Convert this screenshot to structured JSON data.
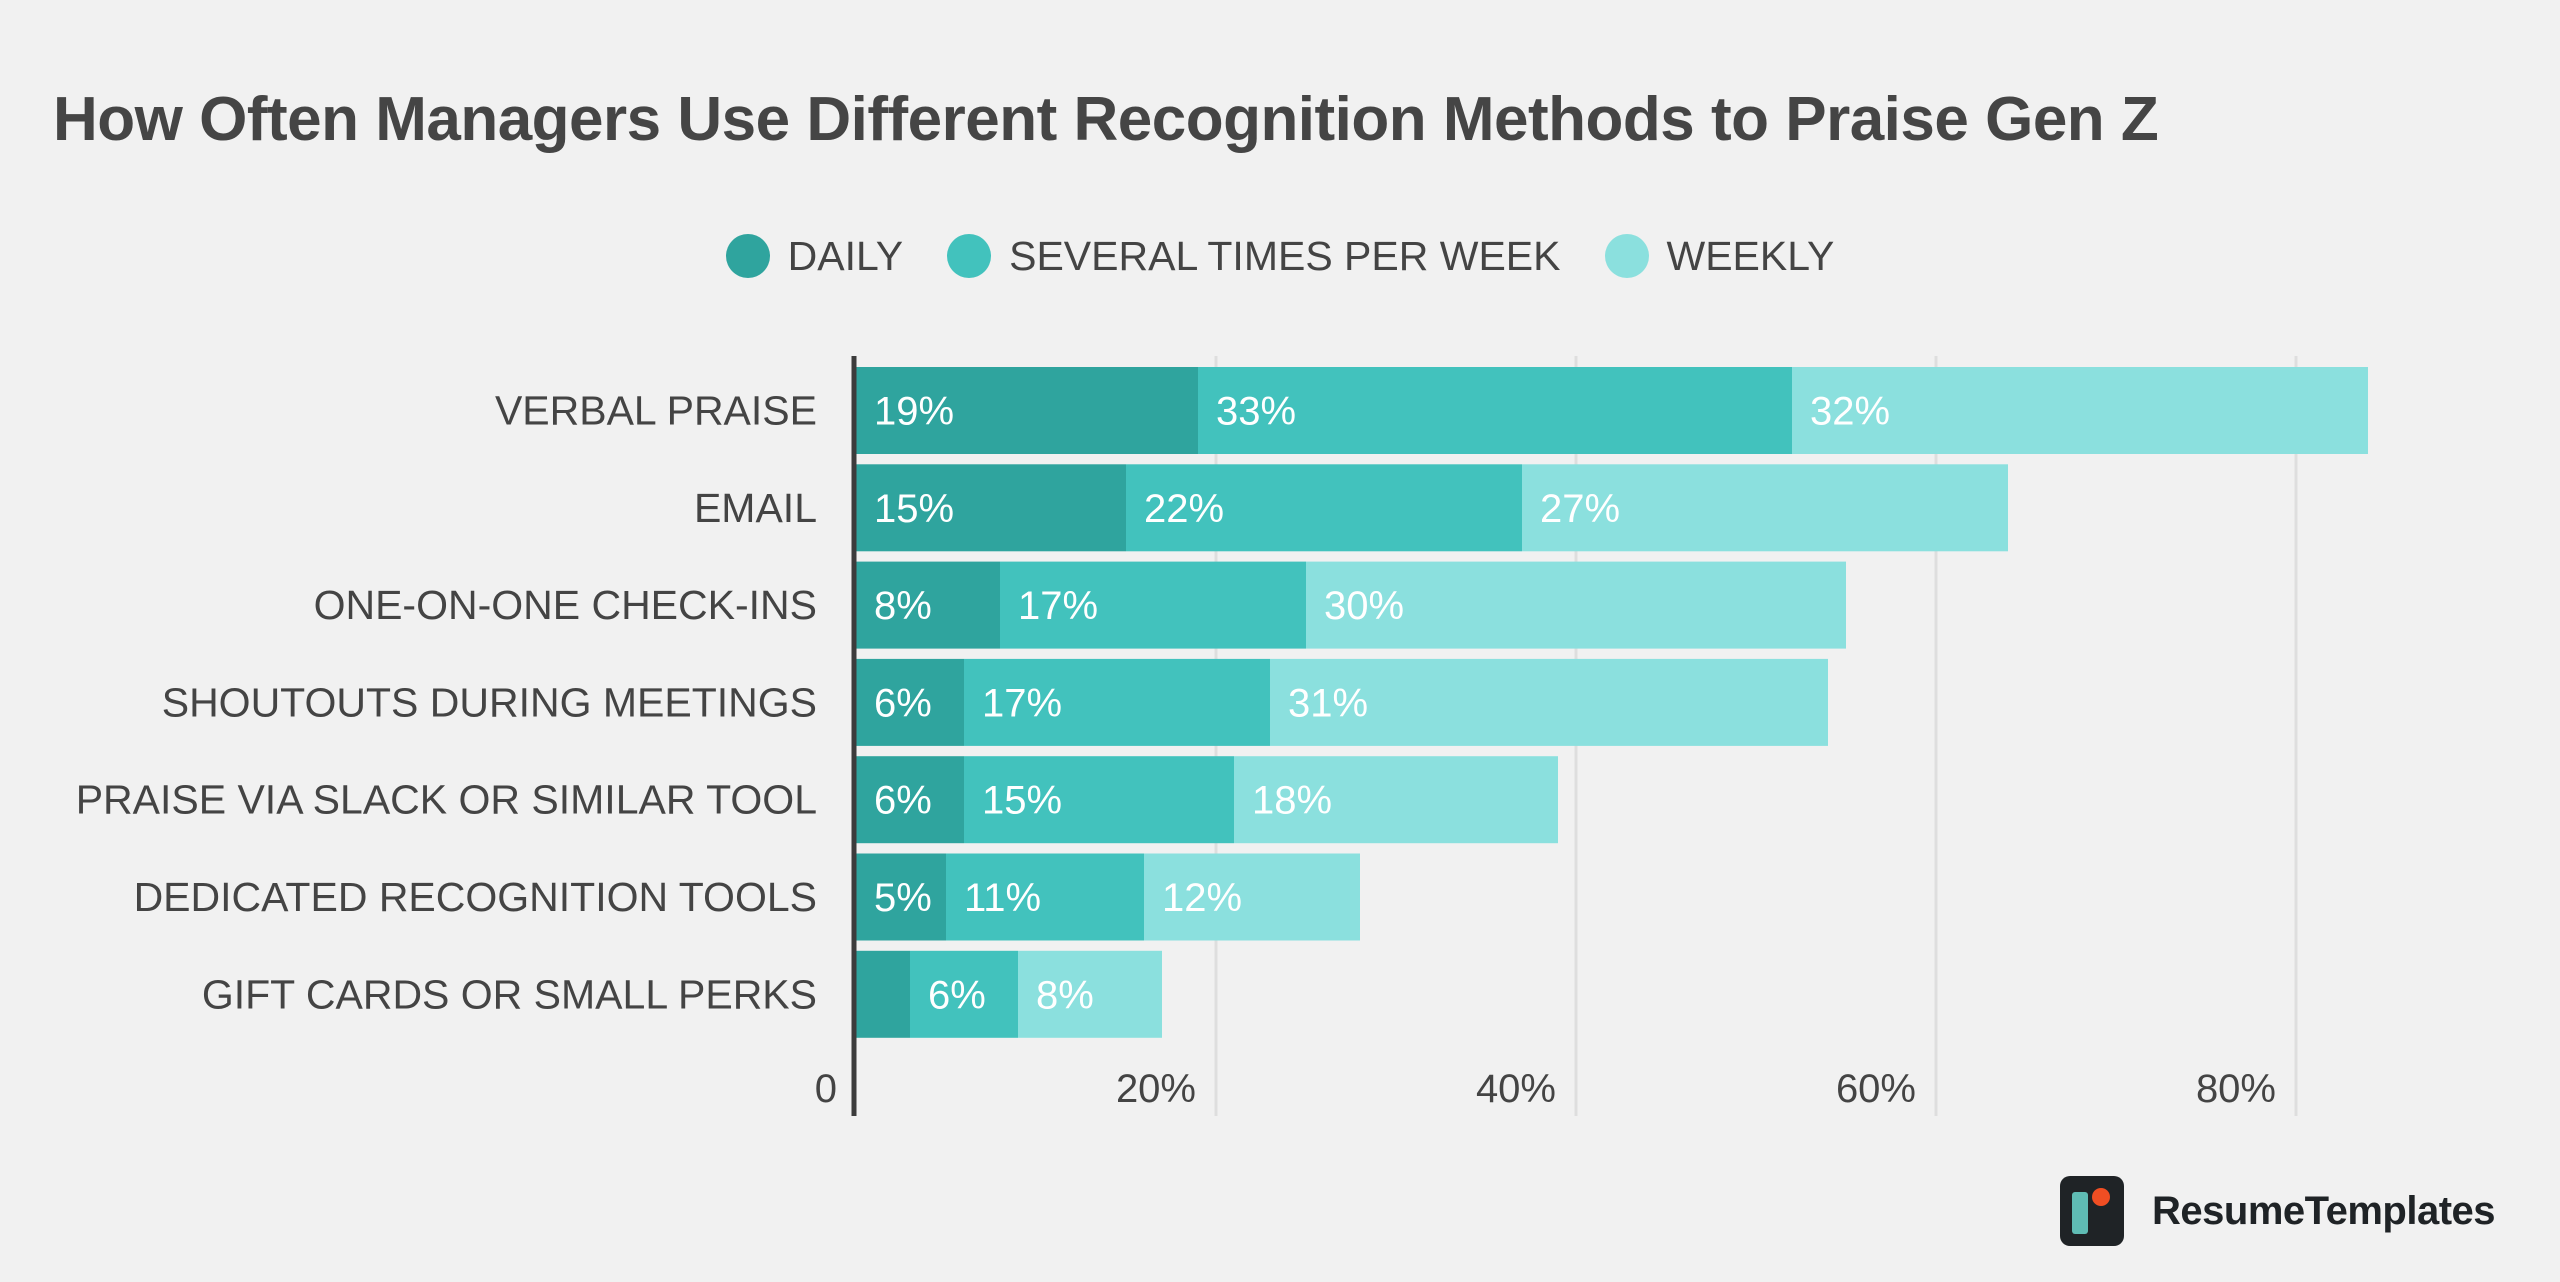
{
  "chart_data": {
    "type": "bar",
    "orientation": "horizontal",
    "stacked": true,
    "title": "How Often Managers Use Different Recognition Methods to Praise Gen Z",
    "categories": [
      "VERBAL PRAISE",
      "EMAIL",
      "ONE-ON-ONE CHECK-INS",
      "SHOUTOUTS DURING MEETINGS",
      "PRAISE VIA SLACK OR SIMILAR TOOL",
      "DEDICATED RECOGNITION TOOLS",
      "GIFT CARDS OR SMALL PERKS"
    ],
    "series": [
      {
        "name": "DAILY",
        "color": "#2fa49e",
        "values": [
          19,
          15,
          8,
          6,
          6,
          5,
          3
        ],
        "labels": [
          "19%",
          "15%",
          "8%",
          "6%",
          "6%",
          "5%",
          ""
        ]
      },
      {
        "name": "SEVERAL TIMES PER WEEK",
        "color": "#42c2bd",
        "values": [
          33,
          22,
          17,
          17,
          15,
          11,
          6
        ],
        "labels": [
          "33%",
          "22%",
          "17%",
          "17%",
          "15%",
          "11%",
          "6%"
        ]
      },
      {
        "name": "WEEKLY",
        "color": "#8be0de",
        "values": [
          32,
          27,
          30,
          31,
          18,
          12,
          8
        ],
        "labels": [
          "32%",
          "27%",
          "30%",
          "31%",
          "18%",
          "12%",
          "8%"
        ]
      }
    ],
    "xlim": [
      0,
      90
    ],
    "xticks": [
      0,
      20,
      40,
      60,
      80
    ],
    "xtick_labels": [
      "0",
      "20%",
      "40%",
      "60%",
      "80%"
    ],
    "grid": true,
    "legend_position": "top-center"
  },
  "brand": {
    "name": "ResumeTemplates"
  }
}
